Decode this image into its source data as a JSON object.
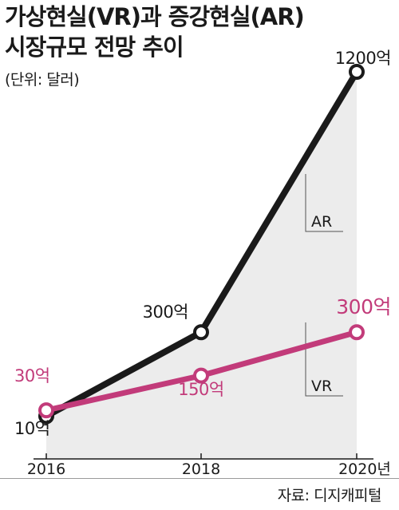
{
  "header": {
    "title_line1": "가상현실(VR)과 증강현실(AR)",
    "title_line2": "시장규모 전망 추이",
    "unit": "(단위: 달러)"
  },
  "source": "자료: 디지캐피털",
  "chart_data": {
    "type": "line",
    "title": "가상현실(VR)과 증강현실(AR) 시장규모 전망 추이",
    "categories": [
      "2016",
      "2018",
      "2020년"
    ],
    "series": [
      {
        "name": "AR",
        "values": [
          10,
          300,
          1200
        ],
        "labels": [
          "10억",
          "300억",
          "1200억"
        ],
        "color": "#1a1a1a"
      },
      {
        "name": "VR",
        "values": [
          30,
          150,
          300
        ],
        "labels": [
          "30억",
          "150억",
          "300억"
        ],
        "color": "#c23b7a"
      }
    ],
    "ylim": [
      0,
      1200
    ],
    "grid": false,
    "legend": "callout-right"
  }
}
